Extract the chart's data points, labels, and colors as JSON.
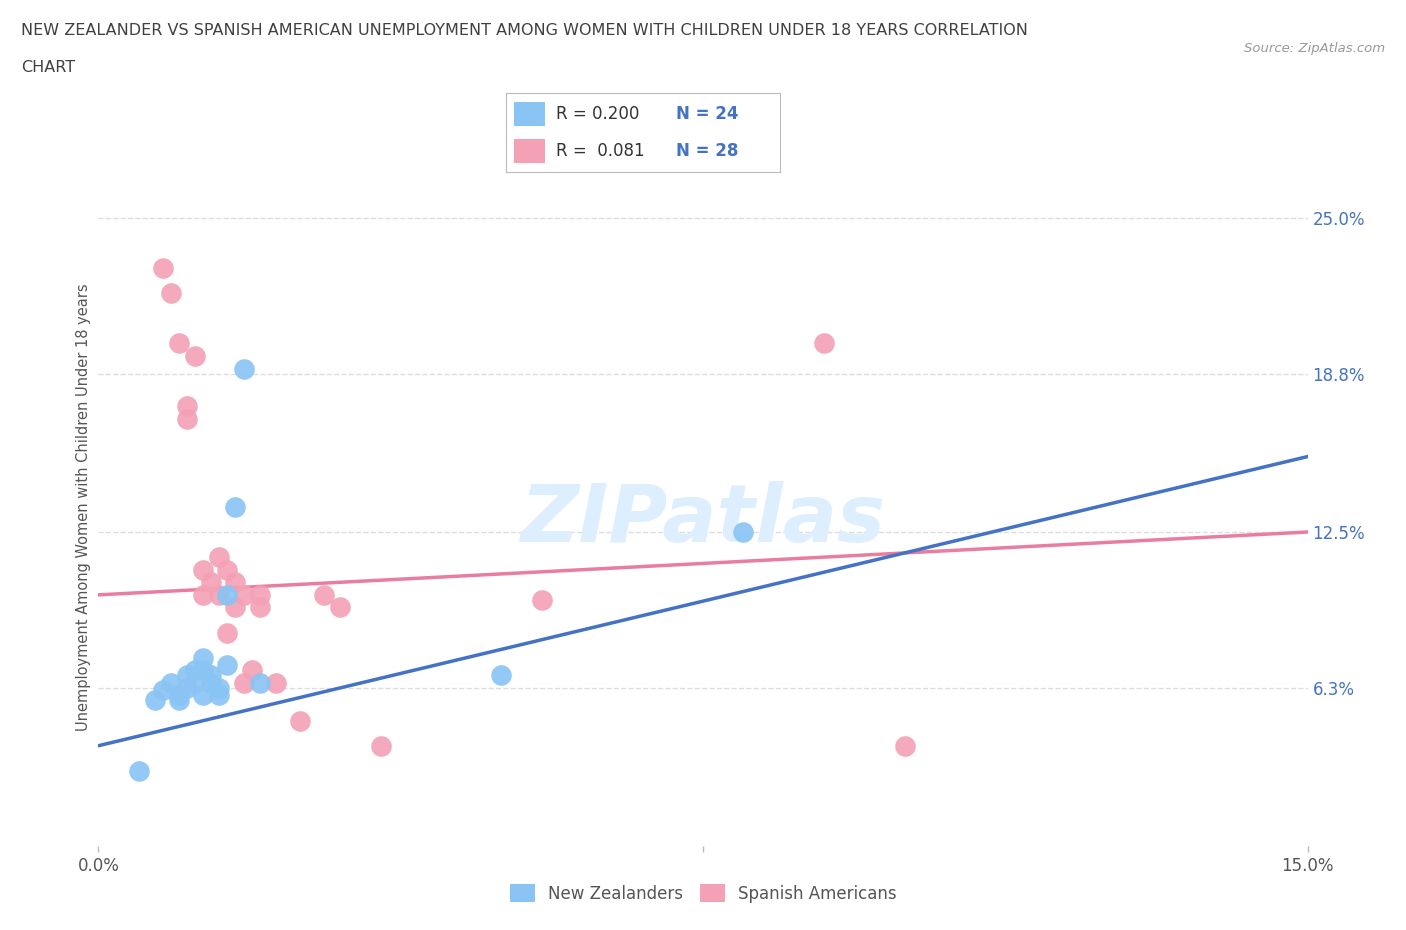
{
  "title_line1": "NEW ZEALANDER VS SPANISH AMERICAN UNEMPLOYMENT AMONG WOMEN WITH CHILDREN UNDER 18 YEARS CORRELATION",
  "title_line2": "CHART",
  "source": "Source: ZipAtlas.com",
  "ylabel": "Unemployment Among Women with Children Under 18 years",
  "xlim": [
    0.0,
    0.15
  ],
  "ylim": [
    0.0,
    0.27
  ],
  "ytick_right_labels": [
    "6.3%",
    "12.5%",
    "18.8%",
    "25.0%"
  ],
  "ytick_right_values": [
    0.063,
    0.125,
    0.188,
    0.25
  ],
  "legend_nz": "New Zealanders",
  "legend_sa": "Spanish Americans",
  "R_nz": "0.200",
  "N_nz": "24",
  "R_sa": "0.081",
  "N_sa": "28",
  "color_nz": "#89C4F4",
  "color_sa": "#F4A0B5",
  "color_nz_line": "#4472C4",
  "color_sa_line": "#E87DA0",
  "color_nz_line_dash": "#7EB6E8",
  "color_text_blue": "#4472C4",
  "color_title": "#404040",
  "color_watermark": "#DDEEFF",
  "watermark_text": "ZIPatlas",
  "background_color": "#FFFFFF",
  "grid_color": "#DDDDDD",
  "nz_x": [
    0.005,
    0.007,
    0.008,
    0.009,
    0.01,
    0.01,
    0.011,
    0.011,
    0.012,
    0.012,
    0.013,
    0.013,
    0.013,
    0.014,
    0.014,
    0.015,
    0.015,
    0.016,
    0.016,
    0.017,
    0.018,
    0.02,
    0.05,
    0.08
  ],
  "nz_y": [
    0.03,
    0.058,
    0.062,
    0.065,
    0.058,
    0.06,
    0.063,
    0.068,
    0.065,
    0.07,
    0.06,
    0.075,
    0.07,
    0.065,
    0.068,
    0.063,
    0.06,
    0.072,
    0.1,
    0.135,
    0.19,
    0.065,
    0.068,
    0.125
  ],
  "sa_x": [
    0.008,
    0.009,
    0.01,
    0.011,
    0.011,
    0.012,
    0.013,
    0.013,
    0.014,
    0.015,
    0.015,
    0.016,
    0.016,
    0.017,
    0.017,
    0.018,
    0.018,
    0.019,
    0.02,
    0.02,
    0.022,
    0.025,
    0.028,
    0.03,
    0.035,
    0.055,
    0.09,
    0.1
  ],
  "sa_y": [
    0.23,
    0.22,
    0.2,
    0.175,
    0.17,
    0.195,
    0.11,
    0.1,
    0.105,
    0.115,
    0.1,
    0.11,
    0.085,
    0.105,
    0.095,
    0.1,
    0.065,
    0.07,
    0.1,
    0.095,
    0.065,
    0.05,
    0.1,
    0.095,
    0.04,
    0.098,
    0.2,
    0.04
  ],
  "nz_trend_x": [
    0.0,
    0.15
  ],
  "nz_trend_y": [
    0.04,
    0.155
  ],
  "sa_trend_x": [
    0.0,
    0.15
  ],
  "sa_trend_y": [
    0.1,
    0.125
  ]
}
